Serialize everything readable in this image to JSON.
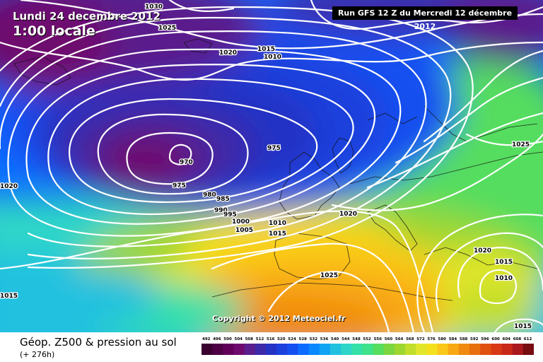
{
  "header": {
    "date": "Lundi 24 decembre 2012",
    "time": "1:00 locale",
    "run": "Run GFS 12 Z du Mercredi 12 décembre 2012"
  },
  "copyright": "Copyright © 2012 Meteociel.fr",
  "footer": {
    "field_title": "Géop. Z500 & pression au sol",
    "field_subtitle": "(+ 276h)"
  },
  "legend": {
    "ticks": [
      "492",
      "496",
      "500",
      "504",
      "508",
      "512",
      "516",
      "520",
      "524",
      "528",
      "532",
      "536",
      "540",
      "544",
      "548",
      "552",
      "556",
      "560",
      "564",
      "568",
      "572",
      "576",
      "580",
      "584",
      "588",
      "592",
      "596",
      "600",
      "604",
      "608",
      "612"
    ],
    "colors": [
      "#3a0030",
      "#4d0046",
      "#600058",
      "#6e0a6e",
      "#5a1f8c",
      "#3d2aa8",
      "#2433c4",
      "#1c40dc",
      "#1450f0",
      "#0d6cff",
      "#0a88ff",
      "#11a4f4",
      "#22c1e0",
      "#2dd6c8",
      "#35e0a8",
      "#3ee28a",
      "#55dd5e",
      "#7ad640",
      "#9ed630",
      "#c2de2a",
      "#e2e62a",
      "#f5e01e",
      "#fac818",
      "#f8a812",
      "#f08a10",
      "#e8700e",
      "#e05010",
      "#d83814",
      "#c82818",
      "#a8181c",
      "#780c10"
    ]
  },
  "pressure_labels": [
    "1030",
    "1025",
    "1020",
    "1015",
    "1010",
    "970",
    "975",
    "975",
    "980",
    "985",
    "990",
    "995",
    "1000",
    "1005",
    "1010",
    "1015",
    "1020",
    "1020",
    "1025",
    "1025",
    "1020",
    "1015",
    "1010",
    "1015",
    "1015"
  ]
}
